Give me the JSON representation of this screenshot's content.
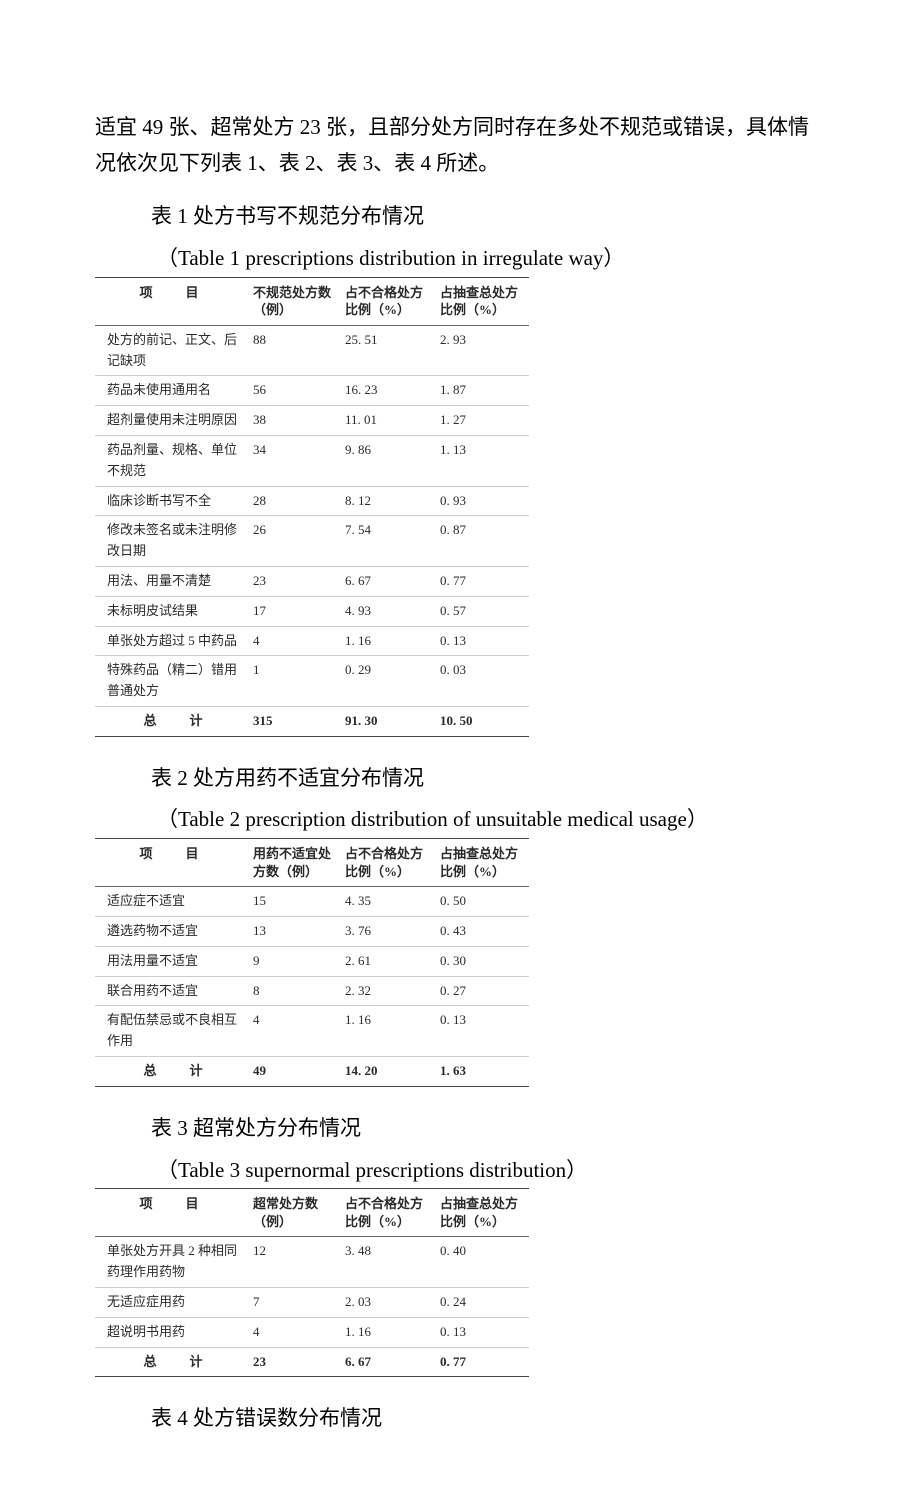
{
  "intro": "适宜 49 张、超常处方 23 张，且部分处方同时存在多处不规范或错误，具体情况依次见下列表 1、表 2、表 3、表 4 所述。",
  "table1": {
    "caption_cn": "表 1  处方书写不规范分布情况",
    "caption_en": "（Table 1   prescriptions distribution in  irregulate way）",
    "headers": [
      "项　目",
      "不规范处方数（例）",
      "占不合格处方比例（%）",
      "占抽查总处方比例（%）"
    ],
    "rows": [
      [
        "处方的前记、正文、后记缺项",
        "88",
        "25. 51",
        "2. 93"
      ],
      [
        "药品未使用通用名",
        "56",
        "16. 23",
        "1. 87"
      ],
      [
        "超剂量使用未注明原因",
        "38",
        "11. 01",
        "1. 27"
      ],
      [
        "药品剂量、规格、单位不规范",
        "34",
        "9. 86",
        "1. 13"
      ],
      [
        "临床诊断书写不全",
        "28",
        "8. 12",
        "0. 93"
      ],
      [
        "修改未签名或未注明修改日期",
        "26",
        "7. 54",
        "0. 87"
      ],
      [
        "用法、用量不清楚",
        "23",
        "6. 67",
        "0. 77"
      ],
      [
        "未标明皮试结果",
        "17",
        "4. 93",
        "0. 57"
      ],
      [
        "单张处方超过 5 中药品",
        "4",
        "1. 16",
        "0. 13"
      ],
      [
        "特殊药品（精二）错用普通处方",
        "1",
        "0. 29",
        "0. 03"
      ]
    ],
    "total": [
      "总　计",
      "315",
      "91. 30",
      "10. 50"
    ]
  },
  "table2": {
    "caption_cn": "表 2  处方用药不适宜分布情况",
    "caption_en": "（Table 2 prescription distribution of unsuitable medical usage）",
    "headers": [
      "项　目",
      "用药不适宜处方数（例）",
      "占不合格处方比例（%）",
      "占抽查总处方比例（%）"
    ],
    "rows": [
      [
        "适应症不适宜",
        "15",
        "4. 35",
        "0. 50"
      ],
      [
        "遴选药物不适宜",
        "13",
        "3. 76",
        "0. 43"
      ],
      [
        "用法用量不适宜",
        "9",
        "2. 61",
        "0. 30"
      ],
      [
        "联合用药不适宜",
        "8",
        "2. 32",
        "0. 27"
      ],
      [
        "有配伍禁忌或不良相互作用",
        "4",
        "1. 16",
        "0. 13"
      ]
    ],
    "total": [
      "总　计",
      "49",
      "14. 20",
      "1. 63"
    ]
  },
  "table3": {
    "caption_cn": "表 3  超常处方分布情况",
    "caption_en": "（Table 3 supernormal prescriptions distribution）",
    "headers": [
      "项　目",
      "超常处方数（例）",
      "占不合格处方比例（%）",
      "占抽查总处方比例（%）"
    ],
    "rows": [
      [
        "单张处方开具 2 种相同药理作用药物",
        "12",
        "3. 48",
        "0. 40"
      ],
      [
        "无适应症用药",
        "7",
        "2. 03",
        "0. 24"
      ],
      [
        "超说明书用药",
        "4",
        "1. 16",
        "0. 13"
      ]
    ],
    "total": [
      "总　计",
      "23",
      "6. 67",
      "0. 77"
    ]
  },
  "table4_caption": "表 4 处方错误数分布情况"
}
